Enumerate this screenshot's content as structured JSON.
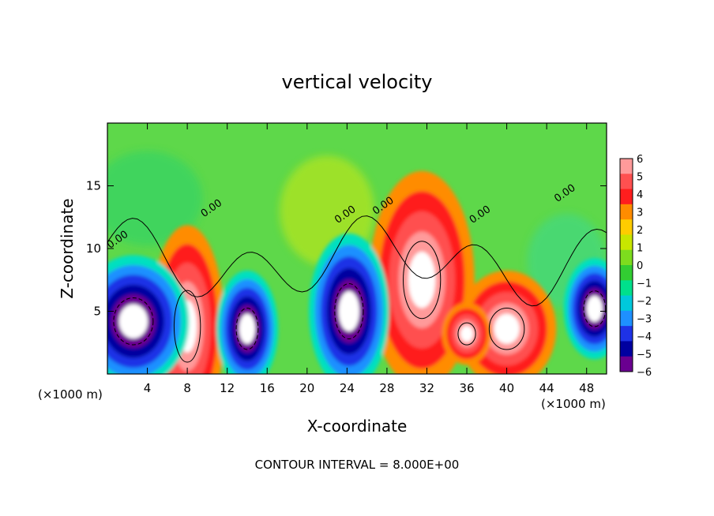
{
  "chart_data": {
    "type": "heatmap",
    "title": "vertical velocity",
    "xlabel": "X-coordinate",
    "ylabel": "Z-coordinate",
    "x_unit_left": "(×1000 m)",
    "x_unit_right": "(×1000 m)",
    "footer": "CONTOUR INTERVAL = 8.000E+00",
    "xlim": [
      0,
      50
    ],
    "ylim": [
      0,
      20
    ],
    "x_ticks": [
      "4",
      "8",
      "12",
      "16",
      "20",
      "24",
      "28",
      "32",
      "36",
      "40",
      "44",
      "48"
    ],
    "y_ticks": [
      "5",
      "10",
      "15"
    ],
    "colorbar": {
      "labels": [
        "6",
        "5",
        "4",
        "3",
        "2",
        "1",
        "0",
        "−1",
        "−2",
        "−3",
        "−4",
        "−5",
        "−6"
      ],
      "colors": [
        "#ff9a9a",
        "#ff5050",
        "#ff1e1e",
        "#ff8c00",
        "#ffcc00",
        "#c8e600",
        "#7ddc1e",
        "#32cd32",
        "#00e08c",
        "#00c8dc",
        "#1e90ff",
        "#1e32e6",
        "#0000a0",
        "#6a0090"
      ]
    },
    "contour_labels": [
      {
        "text": "0.00",
        "x": 1.2,
        "z": 10.5
      },
      {
        "text": "0.00",
        "x": 10.6,
        "z": 13.0
      },
      {
        "text": "0.00",
        "x": 24,
        "z": 12.5
      },
      {
        "text": "0.00",
        "x": 27.8,
        "z": 13.2
      },
      {
        "text": "0.00",
        "x": 37.5,
        "z": 12.5
      },
      {
        "text": "0.00",
        "x": 46,
        "z": 14.2
      }
    ],
    "regions": [
      {
        "kind": "pos",
        "x": 8.0,
        "z": 3.8,
        "rx": 2.4,
        "rz": 5.2
      },
      {
        "kind": "pos",
        "x": 31.5,
        "z": 7.5,
        "rx": 3.4,
        "rz": 5.6
      },
      {
        "kind": "pos",
        "x": 40.0,
        "z": 3.6,
        "rx": 3.2,
        "rz": 3.0
      },
      {
        "kind": "pos",
        "x": 36.0,
        "z": 3.2,
        "rx": 1.6,
        "rz": 1.6
      },
      {
        "kind": "neg",
        "x": 2.6,
        "z": 4.2,
        "rx": 3.6,
        "rz": 3.4
      },
      {
        "kind": "neg",
        "x": 14.0,
        "z": 3.6,
        "rx": 2.0,
        "rz": 3.0
      },
      {
        "kind": "neg",
        "x": 24.2,
        "z": 5.0,
        "rx": 2.6,
        "rz": 4.0
      },
      {
        "kind": "neg",
        "x": 48.8,
        "z": 5.2,
        "rx": 2.0,
        "rz": 2.6
      }
    ]
  }
}
